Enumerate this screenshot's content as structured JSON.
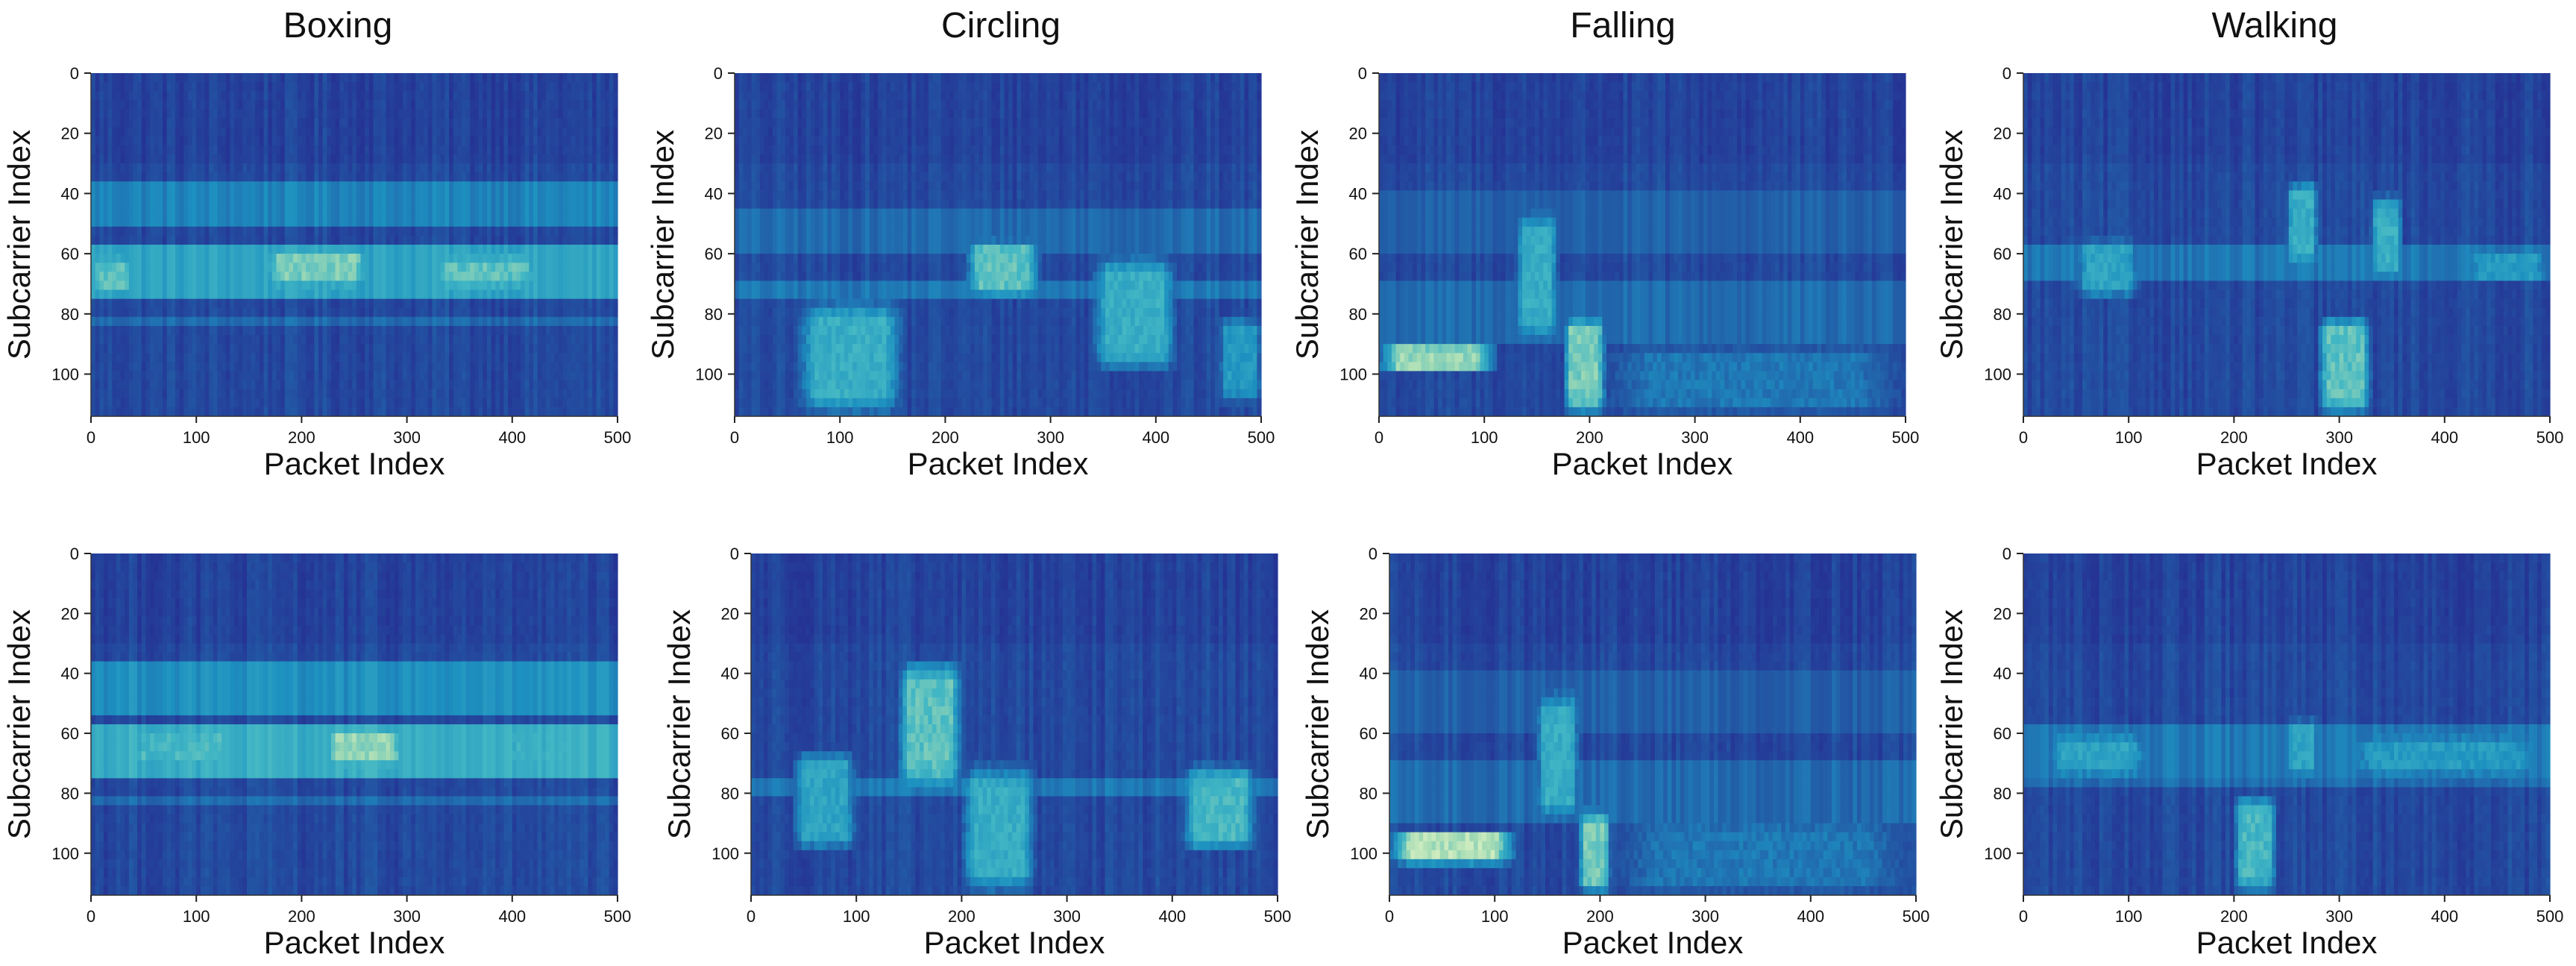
{
  "figure": {
    "column_titles": [
      "Boxing",
      "Circling",
      "Falling",
      "Walking"
    ]
  },
  "chart_data": [
    {
      "type": "heatmap",
      "panel": "Boxing (row 1)",
      "column_title": "Boxing",
      "xlabel": "Packet Index",
      "ylabel": "Subcarrier Index",
      "xlim": [
        0,
        500
      ],
      "ylim": [
        0,
        114
      ],
      "y_inverted": true,
      "xticks": [
        0,
        100,
        200,
        300,
        400,
        500
      ],
      "yticks": [
        0,
        20,
        40,
        60,
        80,
        100
      ],
      "colormap": "YlGnBu",
      "bands": [
        {
          "y": [
            37,
            50
          ],
          "level": 0.4
        },
        {
          "y": [
            57,
            75
          ],
          "level": 0.55
        },
        {
          "y": [
            80,
            84
          ],
          "level": 0.3
        }
      ],
      "hotspots": [
        {
          "x": [
            0,
            40
          ],
          "y": [
            60,
            74
          ],
          "level": 0.7
        },
        {
          "x": [
            160,
            270
          ],
          "y": [
            57,
            72
          ],
          "level": 0.75
        },
        {
          "x": [
            320,
            430
          ],
          "y": [
            60,
            72
          ],
          "level": 0.7
        }
      ]
    },
    {
      "type": "heatmap",
      "panel": "Circling (row 1)",
      "column_title": "Circling",
      "xlabel": "Packet Index",
      "ylabel": "Subcarrier Index",
      "xlim": [
        0,
        500
      ],
      "ylim": [
        0,
        114
      ],
      "y_inverted": true,
      "xticks": [
        0,
        100,
        200,
        300,
        400,
        500
      ],
      "yticks": [
        0,
        20,
        40,
        60,
        80,
        100
      ],
      "colormap": "YlGnBu",
      "bands": [
        {
          "y": [
            45,
            60
          ],
          "level": 0.3
        },
        {
          "y": [
            70,
            74
          ],
          "level": 0.35
        }
      ],
      "hotspots": [
        {
          "x": [
            60,
            160
          ],
          "y": [
            75,
            114
          ],
          "level": 0.6
        },
        {
          "x": [
            220,
            290
          ],
          "y": [
            55,
            75
          ],
          "level": 0.7
        },
        {
          "x": [
            340,
            420
          ],
          "y": [
            60,
            100
          ],
          "level": 0.6
        },
        {
          "x": [
            460,
            500
          ],
          "y": [
            80,
            110
          ],
          "level": 0.5
        }
      ]
    },
    {
      "type": "heatmap",
      "panel": "Falling (row 1)",
      "column_title": "Falling",
      "xlabel": "Packet Index",
      "ylabel": "Subcarrier Index",
      "xlim": [
        0,
        500
      ],
      "ylim": [
        0,
        114
      ],
      "y_inverted": true,
      "xticks": [
        0,
        100,
        200,
        300,
        400,
        500
      ],
      "yticks": [
        0,
        20,
        40,
        60,
        80,
        100
      ],
      "colormap": "YlGnBu",
      "bands": [
        {
          "y": [
            40,
            60
          ],
          "level": 0.25
        },
        {
          "y": [
            70,
            90
          ],
          "level": 0.3
        }
      ],
      "hotspots": [
        {
          "x": [
            0,
            110
          ],
          "y": [
            90,
            100
          ],
          "level": 0.8
        },
        {
          "x": [
            130,
            170
          ],
          "y": [
            45,
            90
          ],
          "level": 0.6
        },
        {
          "x": [
            175,
            215
          ],
          "y": [
            80,
            114
          ],
          "level": 0.75
        },
        {
          "x": [
            210,
            500
          ],
          "y": [
            90,
            114
          ],
          "level": 0.35
        }
      ]
    },
    {
      "type": "heatmap",
      "panel": "Walking (row 1)",
      "column_title": "Walking",
      "xlabel": "Packet Index",
      "ylabel": "Subcarrier Index",
      "xlim": [
        0,
        500
      ],
      "ylim": [
        0,
        114
      ],
      "y_inverted": true,
      "xticks": [
        0,
        100,
        200,
        300,
        400,
        500
      ],
      "yticks": [
        0,
        20,
        40,
        60,
        80,
        100
      ],
      "colormap": "YlGnBu",
      "bands": [
        {
          "y": [
            57,
            70
          ],
          "level": 0.35
        }
      ],
      "hotspots": [
        {
          "x": [
            50,
            110
          ],
          "y": [
            55,
            75
          ],
          "level": 0.55
        },
        {
          "x": [
            250,
            280
          ],
          "y": [
            35,
            65
          ],
          "level": 0.6
        },
        {
          "x": [
            280,
            330
          ],
          "y": [
            80,
            114
          ],
          "level": 0.7
        },
        {
          "x": [
            330,
            360
          ],
          "y": [
            40,
            70
          ],
          "level": 0.6
        },
        {
          "x": [
            420,
            500
          ],
          "y": [
            58,
            70
          ],
          "level": 0.5
        }
      ]
    },
    {
      "type": "heatmap",
      "panel": "Boxing (row 2)",
      "column_title": "Boxing",
      "xlabel": "Packet Index",
      "ylabel": "Subcarrier Index",
      "xlim": [
        0,
        500
      ],
      "ylim": [
        0,
        114
      ],
      "y_inverted": true,
      "xticks": [
        0,
        100,
        200,
        300,
        400,
        500
      ],
      "yticks": [
        0,
        20,
        40,
        60,
        80,
        100
      ],
      "colormap": "YlGnBu",
      "bands": [
        {
          "y": [
            37,
            55
          ],
          "level": 0.45
        },
        {
          "y": [
            57,
            75
          ],
          "level": 0.6
        },
        {
          "y": [
            80,
            84
          ],
          "level": 0.3
        }
      ],
      "hotspots": [
        {
          "x": [
            220,
            300
          ],
          "y": [
            57,
            72
          ],
          "level": 0.8
        },
        {
          "x": [
            30,
            140
          ],
          "y": [
            58,
            72
          ],
          "level": 0.65
        },
        {
          "x": [
            380,
            470
          ],
          "y": [
            58,
            72
          ],
          "level": 0.6
        }
      ]
    },
    {
      "type": "heatmap",
      "panel": "Circling (row 2)",
      "column_title": "Circling",
      "xlabel": "Packet Index",
      "ylabel": "Subcarrier Index",
      "xlim": [
        0,
        500
      ],
      "ylim": [
        0,
        114
      ],
      "y_inverted": true,
      "xticks": [
        0,
        100,
        200,
        300,
        400,
        500
      ],
      "yticks": [
        0,
        20,
        40,
        60,
        80,
        100
      ],
      "colormap": "YlGnBu",
      "bands": [
        {
          "y": [
            76,
            80
          ],
          "level": 0.35
        }
      ],
      "hotspots": [
        {
          "x": [
            40,
            100
          ],
          "y": [
            65,
            100
          ],
          "level": 0.55
        },
        {
          "x": [
            140,
            200
          ],
          "y": [
            35,
            80
          ],
          "level": 0.7
        },
        {
          "x": [
            200,
            270
          ],
          "y": [
            70,
            114
          ],
          "level": 0.6
        },
        {
          "x": [
            410,
            480
          ],
          "y": [
            70,
            100
          ],
          "level": 0.65
        }
      ]
    },
    {
      "type": "heatmap",
      "panel": "Falling (row 2)",
      "column_title": "Falling",
      "xlabel": "Packet Index",
      "ylabel": "Subcarrier Index",
      "xlim": [
        0,
        500
      ],
      "ylim": [
        0,
        114
      ],
      "y_inverted": true,
      "xticks": [
        0,
        100,
        200,
        300,
        400,
        500
      ],
      "yticks": [
        0,
        20,
        40,
        60,
        80,
        100
      ],
      "colormap": "YlGnBu",
      "bands": [
        {
          "y": [
            40,
            60
          ],
          "level": 0.25
        },
        {
          "y": [
            70,
            90
          ],
          "level": 0.3
        }
      ],
      "hotspots": [
        {
          "x": [
            0,
            120
          ],
          "y": [
            92,
            104
          ],
          "level": 0.85
        },
        {
          "x": [
            140,
            180
          ],
          "y": [
            45,
            90
          ],
          "level": 0.6
        },
        {
          "x": [
            180,
            210
          ],
          "y": [
            85,
            114
          ],
          "level": 0.75
        },
        {
          "x": [
            210,
            500
          ],
          "y": [
            88,
            114
          ],
          "level": 0.35
        }
      ]
    },
    {
      "type": "heatmap",
      "panel": "Walking (row 2)",
      "column_title": "Walking",
      "xlabel": "Packet Index",
      "ylabel": "Subcarrier Index",
      "xlim": [
        0,
        500
      ],
      "ylim": [
        0,
        114
      ],
      "y_inverted": true,
      "xticks": [
        0,
        100,
        200,
        300,
        400,
        500
      ],
      "yticks": [
        0,
        20,
        40,
        60,
        80,
        100
      ],
      "colormap": "YlGnBu",
      "bands": [
        {
          "y": [
            57,
            75
          ],
          "level": 0.35
        },
        {
          "y": [
            76,
            79
          ],
          "level": 0.3
        }
      ],
      "hotspots": [
        {
          "x": [
            20,
            120
          ],
          "y": [
            60,
            75
          ],
          "level": 0.55
        },
        {
          "x": [
            200,
            240
          ],
          "y": [
            80,
            114
          ],
          "level": 0.65
        },
        {
          "x": [
            250,
            280
          ],
          "y": [
            55,
            75
          ],
          "level": 0.55
        },
        {
          "x": [
            300,
            500
          ],
          "y": [
            60,
            75
          ],
          "level": 0.5
        }
      ]
    }
  ]
}
